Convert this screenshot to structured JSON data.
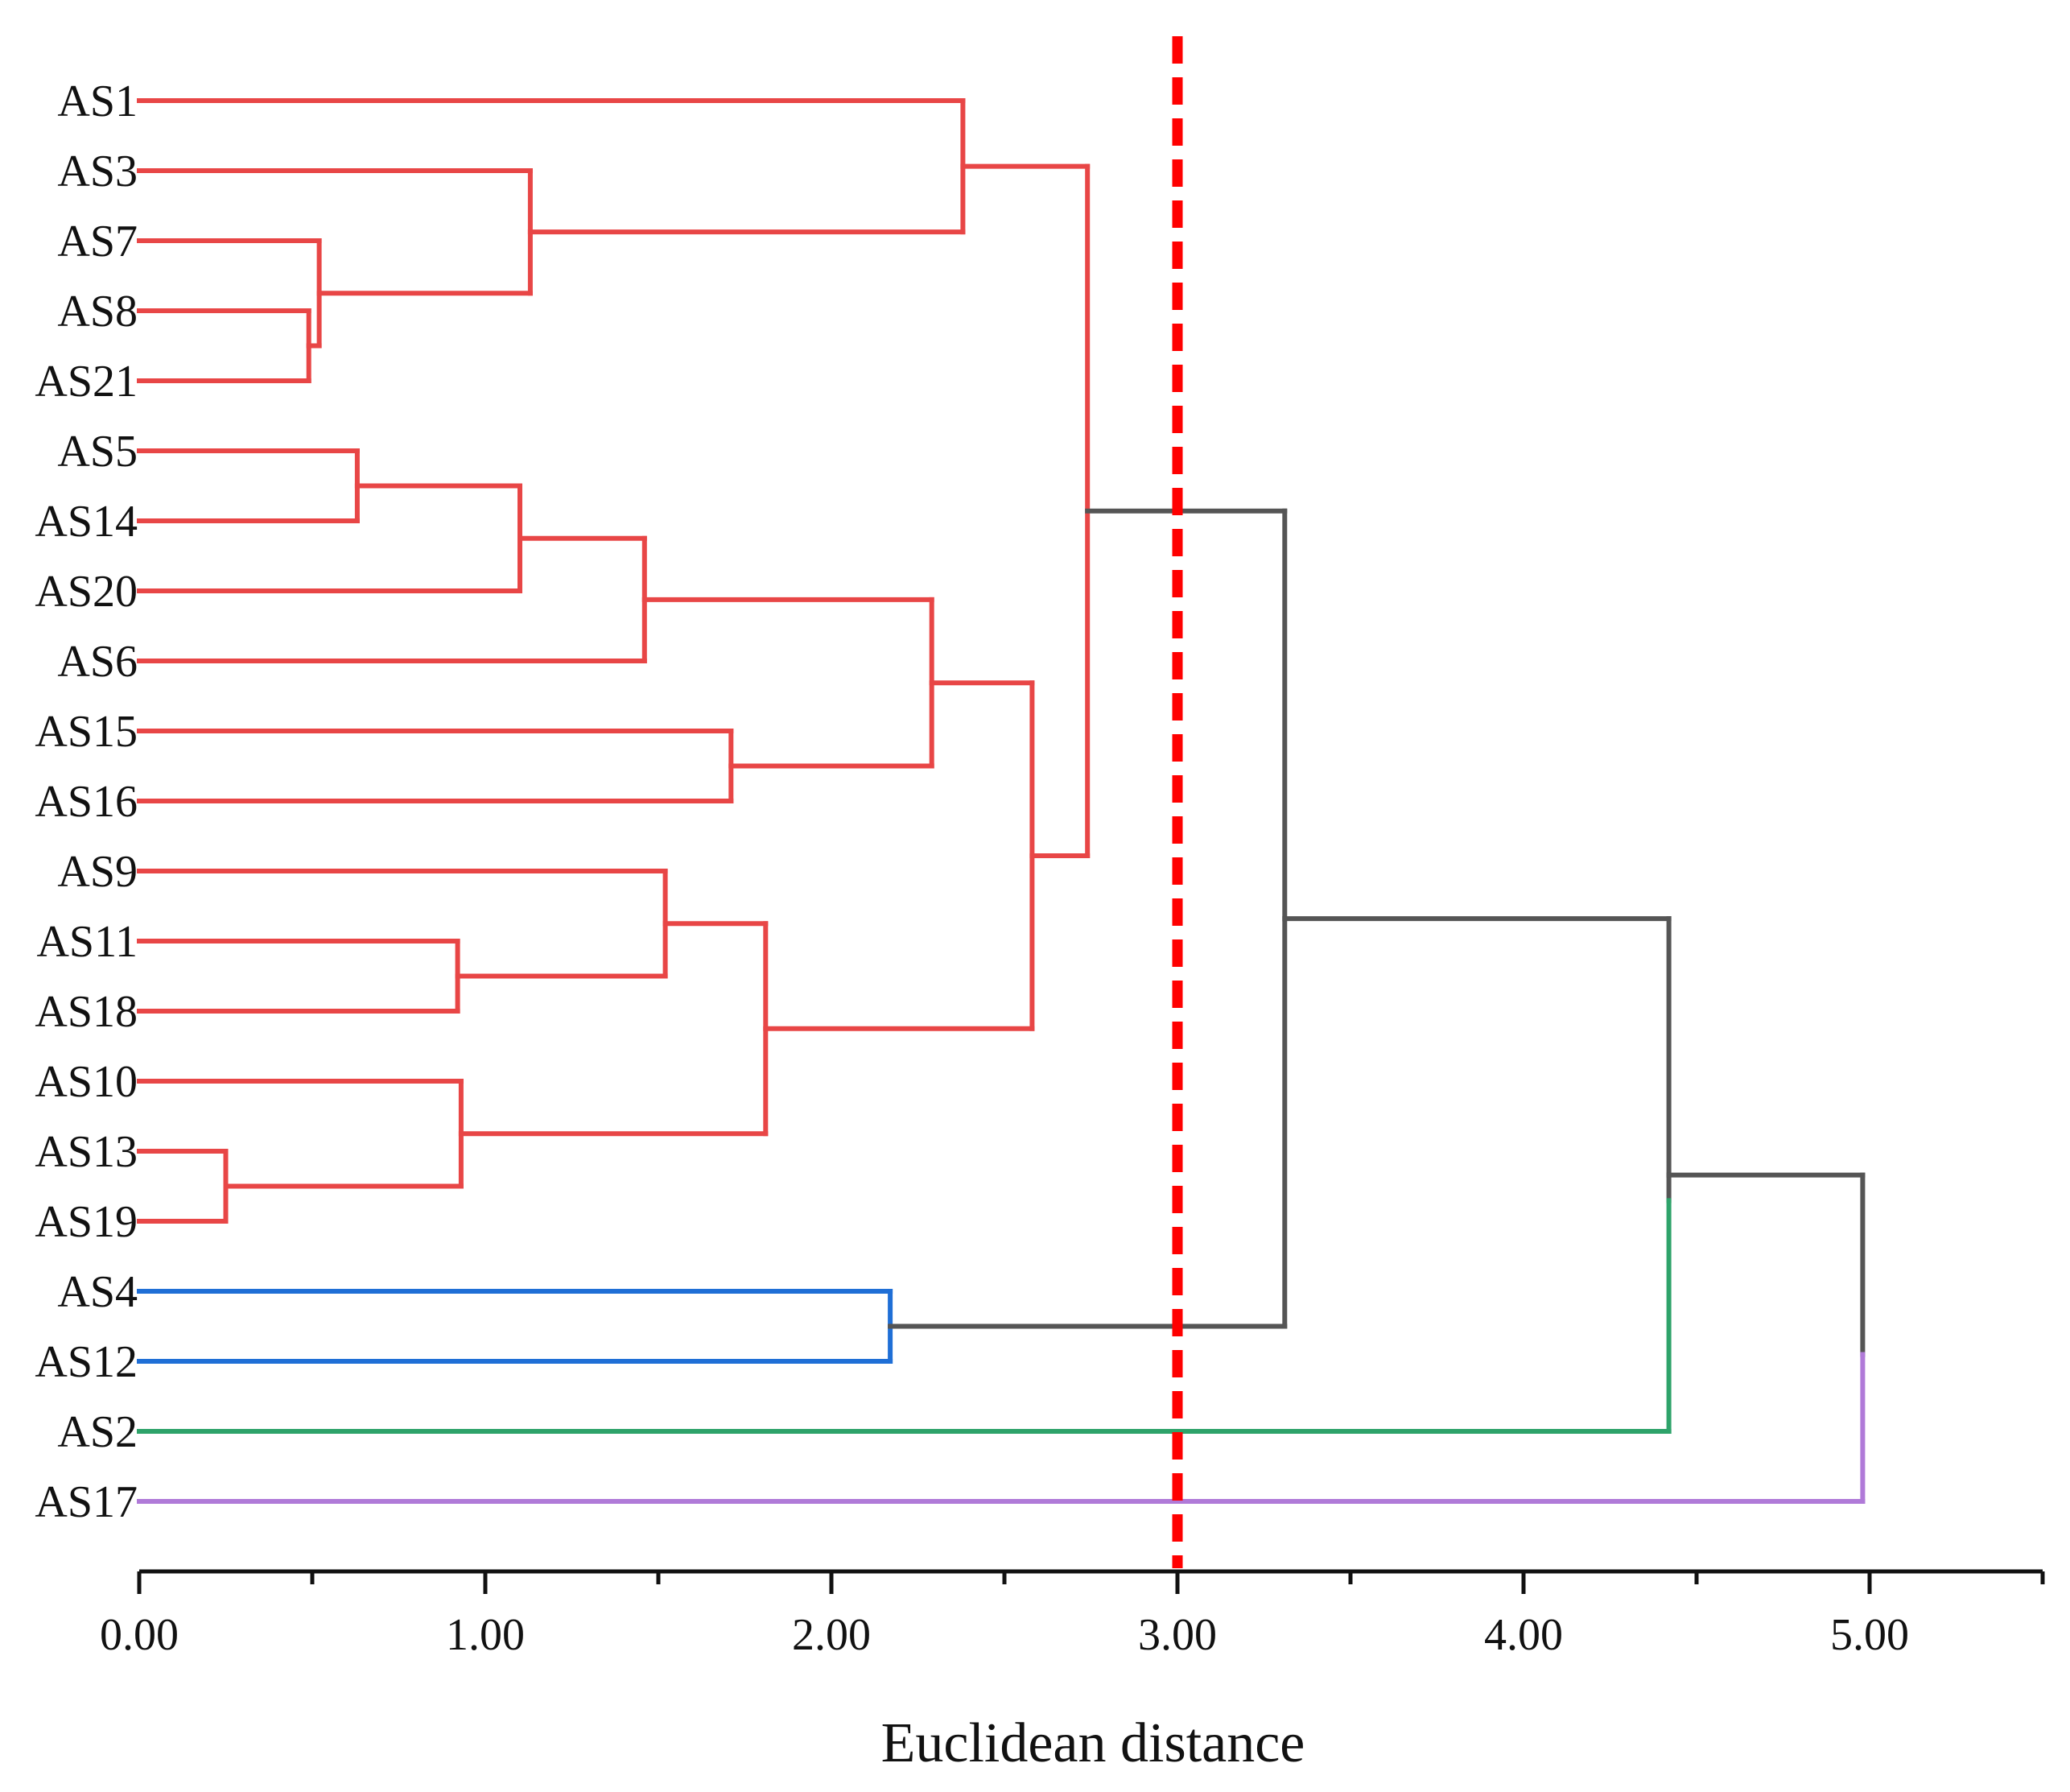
{
  "chart_data": {
    "type": "dendrogram",
    "orientation": "horizontal",
    "xlabel": "Euclidean distance",
    "xlim": [
      0,
      5.5
    ],
    "xticks": [
      {
        "value": 0,
        "label": "0.00"
      },
      {
        "value": 1,
        "label": "1.00"
      },
      {
        "value": 2,
        "label": "2.00"
      },
      {
        "value": 3,
        "label": "3.00"
      },
      {
        "value": 4,
        "label": "4.00"
      },
      {
        "value": 5,
        "label": "5.00"
      }
    ],
    "minor_ticks": [
      0.5,
      1.5,
      2.5,
      3.5,
      4.5,
      5.5
    ],
    "leaves": [
      "AS1",
      "AS3",
      "AS7",
      "AS8",
      "AS21",
      "AS5",
      "AS14",
      "AS20",
      "AS6",
      "AS15",
      "AS16",
      "AS9",
      "AS11",
      "AS18",
      "AS10",
      "AS13",
      "AS19",
      "AS4",
      "AS12",
      "AS2",
      "AS17"
    ],
    "cut_threshold": 3.0,
    "colors": {
      "cluster_red": "#e84646",
      "cluster_blue": "#1f6fd6",
      "cluster_green": "#2ea36a",
      "cluster_purple": "#b07ad8",
      "above_cut": "#555555",
      "cut_line": "#ff0000",
      "axis": "#111111"
    },
    "merges": [
      {
        "a": "AS8",
        "b": "AS21",
        "height": 0.49,
        "color": "cluster_red"
      },
      {
        "a": "AS7",
        "b": "M1",
        "height": 0.52,
        "color": "cluster_red"
      },
      {
        "a": "AS3",
        "b": "M2",
        "height": 1.13,
        "color": "cluster_red"
      },
      {
        "a": "AS1",
        "b": "M3",
        "height": 2.38,
        "color": "cluster_red"
      },
      {
        "a": "AS5",
        "b": "AS14",
        "height": 0.63,
        "color": "cluster_red"
      },
      {
        "a": "M5",
        "b": "AS20",
        "height": 1.1,
        "color": "cluster_red"
      },
      {
        "a": "M6",
        "b": "AS6",
        "height": 1.46,
        "color": "cluster_red"
      },
      {
        "a": "AS15",
        "b": "AS16",
        "height": 1.71,
        "color": "cluster_red"
      },
      {
        "a": "M7",
        "b": "M8",
        "height": 2.29,
        "color": "cluster_red"
      },
      {
        "a": "AS11",
        "b": "AS18",
        "height": 0.92,
        "color": "cluster_red"
      },
      {
        "a": "AS9",
        "b": "M10",
        "height": 1.52,
        "color": "cluster_red"
      },
      {
        "a": "AS13",
        "b": "AS19",
        "height": 0.25,
        "color": "cluster_red"
      },
      {
        "a": "AS10",
        "b": "M12",
        "height": 0.93,
        "color": "cluster_red"
      },
      {
        "a": "M11",
        "b": "M13",
        "height": 1.81,
        "color": "cluster_red"
      },
      {
        "a": "M9",
        "b": "M14",
        "height": 2.58,
        "color": "cluster_red"
      },
      {
        "a": "M4",
        "b": "M15",
        "height": 2.74,
        "color": "cluster_red"
      },
      {
        "a": "AS4",
        "b": "AS12",
        "height": 2.17,
        "color": "cluster_blue"
      },
      {
        "a": "M16",
        "b": "M17",
        "height": 3.31,
        "color": "above_cut"
      },
      {
        "a": "M18",
        "b": "AS2",
        "height": 4.42,
        "color": "above_cut",
        "b_color": "cluster_green"
      },
      {
        "a": "M19",
        "b": "AS17",
        "height": 4.98,
        "color": "above_cut",
        "b_color": "cluster_purple"
      }
    ],
    "leaf_colors": {
      "AS4": "cluster_blue",
      "AS12": "cluster_blue",
      "AS2": "cluster_green",
      "AS17": "cluster_purple"
    }
  }
}
